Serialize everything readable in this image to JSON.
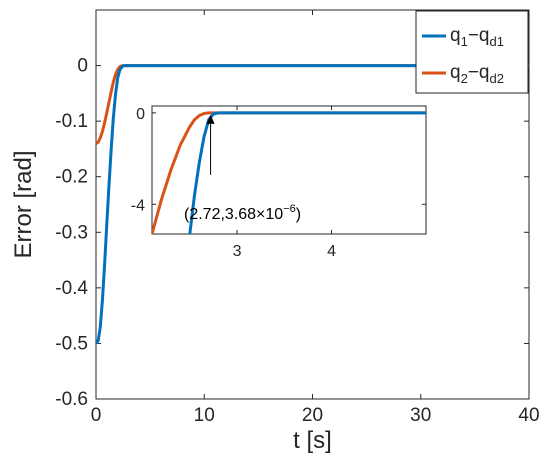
{
  "chart_data": {
    "type": "line",
    "xlabel": "t [s]",
    "ylabel": "Error [rad]",
    "xlim": [
      0,
      40
    ],
    "ylim": [
      -0.6,
      0.1
    ],
    "x_ticks": [
      "0",
      "10",
      "20",
      "30",
      "40"
    ],
    "y_ticks": [
      "0",
      "-0.1",
      "-0.2",
      "-0.3",
      "-0.4",
      "-0.5",
      "-0.6"
    ],
    "grid": false,
    "legend_placement": "top-right",
    "series": [
      {
        "name": "q_1 − q_d1",
        "name_parts": {
          "base": "q",
          "sub1": "1",
          "minus": "−q",
          "sub2": "d1"
        },
        "color": "#0072BD",
        "x": [
          0,
          0.2,
          0.4,
          0.6,
          0.8,
          1.0,
          1.2,
          1.4,
          1.6,
          1.8,
          2.0,
          2.2,
          2.4,
          2.6,
          2.72,
          3.0,
          5,
          10,
          20,
          30,
          40
        ],
        "y": [
          -0.5,
          -0.495,
          -0.47,
          -0.42,
          -0.355,
          -0.285,
          -0.215,
          -0.15,
          -0.095,
          -0.052,
          -0.022,
          -0.008,
          -0.002,
          -0.0003,
          0,
          0,
          0,
          0,
          0,
          0,
          0
        ]
      },
      {
        "name": "q_2 − q_d2",
        "name_parts": {
          "base": "q",
          "sub1": "2",
          "minus": "−q",
          "sub2": "d2"
        },
        "color": "#D95319",
        "x": [
          0,
          0.2,
          0.4,
          0.6,
          0.8,
          1.0,
          1.2,
          1.4,
          1.6,
          1.8,
          2.0,
          2.2,
          2.4,
          2.6,
          2.72,
          3.0,
          5,
          10,
          20,
          30,
          40
        ],
        "y": [
          -0.14,
          -0.138,
          -0.13,
          -0.118,
          -0.102,
          -0.085,
          -0.066,
          -0.047,
          -0.03,
          -0.016,
          -0.007,
          -0.002,
          -0.0005,
          -0.0001,
          0,
          0,
          0,
          0,
          0,
          0,
          0
        ]
      }
    ],
    "inset": {
      "xlim": [
        2.1,
        5.0
      ],
      "ylim": [
        -5.3,
        0.3
      ],
      "x_ticks": [
        "3",
        "4"
      ],
      "y_ticks": [
        "0",
        "-4"
      ],
      "series": [
        {
          "color": "#0072BD",
          "x": [
            2.5,
            2.55,
            2.6,
            2.65,
            2.7,
            2.75,
            2.8,
            5.0
          ],
          "y": [
            -5.3,
            -3.6,
            -2.2,
            -1.05,
            -0.3,
            -0.05,
            0,
            0
          ]
        },
        {
          "color": "#D95319",
          "x": [
            2.1,
            2.2,
            2.3,
            2.4,
            2.5,
            2.55,
            2.6,
            2.65,
            2.7,
            5.0
          ],
          "y": [
            -5.3,
            -3.8,
            -2.5,
            -1.4,
            -0.6,
            -0.3,
            -0.12,
            -0.03,
            0,
            0
          ]
        }
      ],
      "annotation": {
        "text_prefix": "(2.72,3.68×10",
        "text_exp": "−6",
        "text_suffix": ")",
        "point": [
          2.72,
          0
        ]
      }
    }
  }
}
